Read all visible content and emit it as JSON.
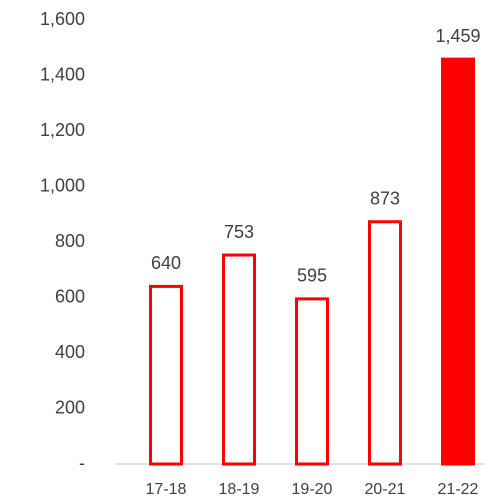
{
  "chart_data": {
    "type": "bar",
    "categories": [
      "17-18",
      "18-19",
      "19-20",
      "20-21",
      "21-22"
    ],
    "values": [
      640,
      753,
      595,
      873,
      1459
    ],
    "value_labels": [
      "640",
      "753",
      "595",
      "873",
      "1,459"
    ],
    "color": "#ff0000",
    "filled": [
      false,
      false,
      false,
      false,
      true
    ],
    "ylim": [
      0,
      1600
    ],
    "yticks": [
      {
        "value": 0,
        "label": "-"
      },
      200,
      400,
      600,
      800,
      {
        "value": 1000,
        "label": "1,000"
      },
      {
        "value": 1200,
        "label": "1,200"
      },
      {
        "value": 1400,
        "label": "1,400"
      },
      {
        "value": 1600,
        "label": "1,600"
      }
    ],
    "grid": false
  }
}
